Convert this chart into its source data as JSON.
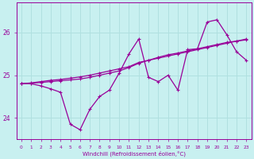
{
  "xlabel": "Windchill (Refroidissement éolien,°C)",
  "background_color": "#c8f0f0",
  "line_color": "#990099",
  "grid_color": "#b0e0e0",
  "xlim": [
    -0.5,
    23.5
  ],
  "ylim": [
    23.5,
    26.7
  ],
  "yticks": [
    24,
    25,
    26
  ],
  "xticks": [
    0,
    1,
    2,
    3,
    4,
    5,
    6,
    7,
    8,
    9,
    10,
    11,
    12,
    13,
    14,
    15,
    16,
    17,
    18,
    19,
    20,
    21,
    22,
    23
  ],
  "series1_x": [
    0,
    1,
    2,
    3,
    4,
    5,
    6,
    7,
    8,
    9,
    10,
    11,
    12,
    13,
    14,
    15,
    16,
    17,
    18,
    19,
    20,
    21,
    22,
    23
  ],
  "series1_y": [
    24.8,
    24.82,
    24.85,
    24.88,
    24.9,
    24.93,
    24.96,
    25.0,
    25.05,
    25.1,
    25.15,
    25.2,
    25.3,
    25.35,
    25.4,
    25.45,
    25.5,
    25.55,
    25.6,
    25.65,
    25.7,
    25.75,
    25.8,
    25.85
  ],
  "series2_x": [
    0,
    1,
    2,
    3,
    4,
    5,
    6,
    7,
    8,
    9,
    10,
    11,
    12,
    13,
    14,
    15,
    16,
    17,
    18,
    19,
    20,
    21,
    22,
    23
  ],
  "series2_y": [
    24.8,
    24.81,
    24.83,
    24.85,
    24.87,
    24.89,
    24.91,
    24.95,
    25.0,
    25.05,
    25.1,
    25.18,
    25.28,
    25.35,
    25.42,
    25.48,
    25.52,
    25.57,
    25.62,
    25.67,
    25.72,
    25.77,
    25.8,
    25.83
  ],
  "series3_x": [
    0,
    1,
    2,
    3,
    4,
    5,
    6,
    7,
    8,
    9,
    10,
    11,
    12,
    13,
    14,
    15,
    16,
    17,
    18,
    19,
    20,
    21,
    22,
    23
  ],
  "series3_y": [
    24.8,
    24.8,
    24.75,
    24.68,
    24.6,
    23.85,
    23.72,
    24.2,
    24.5,
    24.65,
    25.05,
    25.5,
    25.85,
    24.95,
    24.85,
    25.0,
    24.65,
    25.6,
    25.62,
    26.25,
    26.3,
    25.95,
    25.55,
    25.35
  ]
}
